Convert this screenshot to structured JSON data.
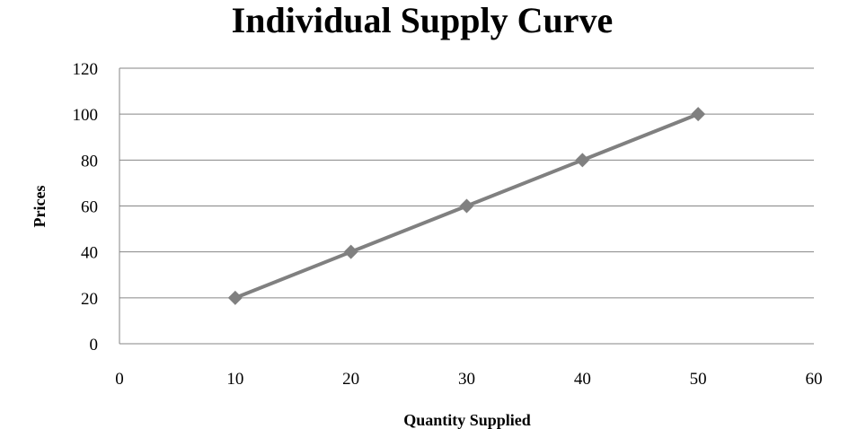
{
  "chart_data": {
    "type": "scatter",
    "title": "Individual Supply Curve",
    "xlabel": "Quantity Supplied",
    "ylabel": "Prices",
    "xlim": [
      0,
      60
    ],
    "ylim": [
      0,
      120
    ],
    "x_ticks": [
      "0",
      "10",
      "20",
      "30",
      "40",
      "50",
      "60"
    ],
    "y_ticks": [
      "0",
      "20",
      "40",
      "60",
      "80",
      "100",
      "120"
    ],
    "grid": true,
    "series": [
      {
        "x": [
          10,
          20,
          30,
          40,
          50
        ],
        "y": [
          20,
          40,
          60,
          80,
          100
        ],
        "color": "#808080",
        "marker": "diamond",
        "line": "straight"
      }
    ]
  }
}
